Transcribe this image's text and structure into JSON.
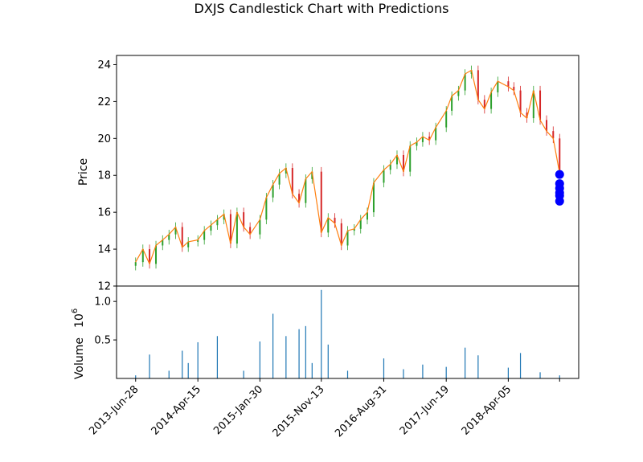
{
  "chart_data": {
    "type": "candlestick",
    "title": "DXJS Candlestick Chart with Predictions",
    "price_panel": {
      "ylabel": "Price",
      "ylim": [
        12,
        24.5
      ],
      "yticks": [
        12,
        14,
        16,
        18,
        20,
        22,
        24
      ],
      "up_color": "#2ca02c",
      "down_color": "#d62728",
      "close_line_color": "#ff7f0e",
      "price_series": {
        "x_dates": [
          "2013-Jun-28",
          "2013-Aug-01",
          "2013-Sep-01",
          "2013-Oct-01",
          "2013-Nov-01",
          "2013-Dec-01",
          "2014-Jan-01",
          "2014-Feb-01",
          "2014-Mar-01",
          "2014-Apr-15",
          "2014-May-15",
          "2014-Jun-15",
          "2014-Jul-15",
          "2014-Aug-15",
          "2014-Sep-15",
          "2014-Oct-15",
          "2014-Nov-15",
          "2014-Dec-15",
          "2015-Jan-30",
          "2015-Mar-01",
          "2015-Apr-01",
          "2015-May-01",
          "2015-Jun-01",
          "2015-Jul-01",
          "2015-Aug-01",
          "2015-Sep-01",
          "2015-Oct-01",
          "2015-Nov-13",
          "2015-Dec-15",
          "2016-Jan-15",
          "2016-Feb-15",
          "2016-Mar-15",
          "2016-Apr-15",
          "2016-May-15",
          "2016-Jun-15",
          "2016-Jul-15",
          "2016-Aug-31",
          "2016-Oct-01",
          "2016-Nov-01",
          "2016-Dec-01",
          "2017-Jan-01",
          "2017-Feb-01",
          "2017-Mar-01",
          "2017-Apr-01",
          "2017-May-01",
          "2017-Jun-19",
          "2017-Jul-15",
          "2017-Aug-15",
          "2017-Sep-15",
          "2017-Oct-15",
          "2017-Nov-15",
          "2017-Dec-15",
          "2018-Jan-15",
          "2018-Feb-15",
          "2018-Apr-05",
          "2018-May-01",
          "2018-Jun-01",
          "2018-Jul-01",
          "2018-Aug-01",
          "2018-Sep-01",
          "2018-Oct-01",
          "2018-Nov-01",
          "2018-Dec-01"
        ],
        "close": [
          13.3,
          14.0,
          13.2,
          14.2,
          14.5,
          14.8,
          15.2,
          14.1,
          14.4,
          14.5,
          15.0,
          15.3,
          15.6,
          15.9,
          14.3,
          16.0,
          15.2,
          14.8,
          15.6,
          16.8,
          17.5,
          18.1,
          18.4,
          17.0,
          16.5,
          17.8,
          18.2,
          14.9,
          15.7,
          15.4,
          14.2,
          15.0,
          15.1,
          15.6,
          16.0,
          17.6,
          18.3,
          18.6,
          19.1,
          18.2,
          19.6,
          19.8,
          20.1,
          19.9,
          20.6,
          21.5,
          22.3,
          22.6,
          23.5,
          23.7,
          22.1,
          21.6,
          22.5,
          23.1,
          22.8,
          22.6,
          21.4,
          21.1,
          22.6,
          21.0,
          20.4,
          20.0,
          18.1
        ]
      },
      "predictions": {
        "color": "#0000ff",
        "x_date": "2018-Dec-01",
        "values": [
          18.05,
          17.55,
          17.3,
          17.05,
          16.9,
          16.6
        ]
      }
    },
    "volume_panel": {
      "ylabel": "Volume",
      "offset_label": "10",
      "offset_exponent": "6",
      "ylim": [
        0,
        1.2
      ],
      "yticks": [
        "0.5",
        "1.0"
      ],
      "bar_color": "#1f77b4",
      "volume_series": {
        "x_dates": [
          "2013-Jun-28",
          "2013-Sep-01",
          "2013-Dec-01",
          "2014-Feb-01",
          "2014-Mar-01",
          "2014-Apr-15",
          "2014-Jul-15",
          "2014-Nov-15",
          "2015-Jan-30",
          "2015-Apr-01",
          "2015-Jun-01",
          "2015-Aug-01",
          "2015-Sep-01",
          "2015-Oct-01",
          "2015-Nov-13",
          "2015-Dec-15",
          "2016-Mar-15",
          "2016-Aug-31",
          "2016-Dec-01",
          "2017-Mar-01",
          "2017-Jun-19",
          "2017-Sep-15",
          "2017-Nov-15",
          "2018-Apr-05",
          "2018-Jun-01",
          "2018-Sep-01",
          "2018-Dec-01"
        ],
        "values": [
          0.04,
          0.31,
          0.1,
          0.36,
          0.2,
          0.47,
          0.55,
          0.1,
          0.48,
          0.84,
          0.55,
          0.64,
          0.68,
          0.2,
          1.15,
          0.44,
          0.1,
          0.26,
          0.12,
          0.18,
          0.15,
          0.4,
          0.3,
          0.14,
          0.33,
          0.08,
          0.04
        ]
      }
    },
    "x_axis": {
      "tick_labels": [
        "2013-Jun-28",
        "2014-Apr-15",
        "2015-Jan-30",
        "2015-Nov-13",
        "2016-Aug-31",
        "2017-Jun-19",
        "2018-Apr-05"
      ],
      "tick_label_rotation_deg": 45
    }
  }
}
